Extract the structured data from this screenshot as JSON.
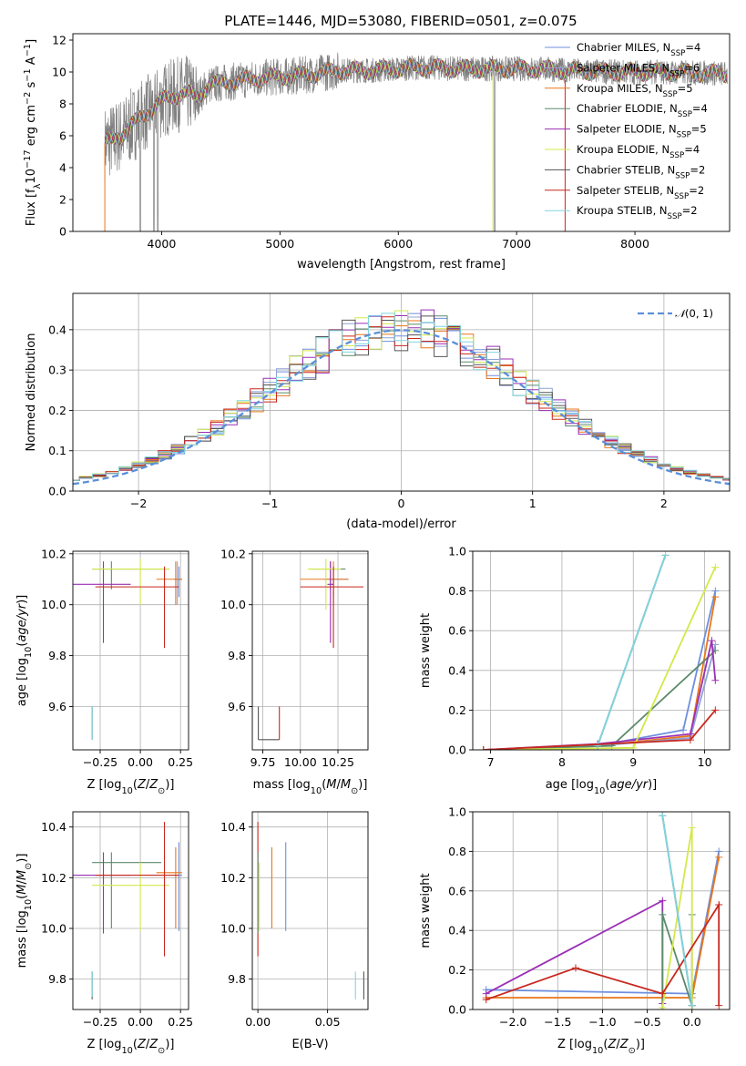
{
  "figure_title": "PLATE=1446, MJD=53080, FIBERID=0501, z=0.075",
  "models": [
    {
      "name": "Chabrier MILES",
      "nssp": 4,
      "label_prefix": "Chabrier MILES, N",
      "label_sub": "SSP",
      "label_suffix": "=4",
      "color": "#6e8fde"
    },
    {
      "name": "Salpeter MILES",
      "nssp": 6,
      "label_prefix": "Salpeter MILES, N",
      "label_sub": "SSP",
      "label_suffix": "=6",
      "color": "#8fa2d8"
    },
    {
      "name": "Kroupa MILES",
      "nssp": 5,
      "label_prefix": "Kroupa MILES, N",
      "label_sub": "SSP",
      "label_suffix": "=5",
      "color": "#e8761a"
    },
    {
      "name": "Chabrier ELODIE",
      "nssp": 4,
      "label_prefix": "Chabrier ELODIE, N",
      "label_sub": "SSP",
      "label_suffix": "=4",
      "color": "#5b8a6a"
    },
    {
      "name": "Salpeter ELODIE",
      "nssp": 5,
      "label_prefix": "Salpeter ELODIE, N",
      "label_sub": "SSP",
      "label_suffix": "=5",
      "color": "#9b2fb6"
    },
    {
      "name": "Kroupa ELODIE",
      "nssp": 4,
      "label_prefix": "Kroupa ELODIE, N",
      "label_sub": "SSP",
      "label_suffix": "=4",
      "color": "#d4e84a"
    },
    {
      "name": "Chabrier STELIB",
      "nssp": 2,
      "label_prefix": "Chabrier STELIB, N",
      "label_sub": "SSP",
      "label_suffix": "=2",
      "color": "#555555"
    },
    {
      "name": "Salpeter STELIB",
      "nssp": 2,
      "label_prefix": "Salpeter STELIB, N",
      "label_sub": "SSP",
      "label_suffix": "=2",
      "color": "#c8281e"
    },
    {
      "name": "Kroupa STELIB",
      "nssp": 2,
      "label_prefix": "Kroupa STELIB, N",
      "label_sub": "SSP",
      "label_suffix": "=2",
      "color": "#7fd6e0"
    }
  ],
  "chart_data": [
    {
      "id": "spectrum",
      "type": "line",
      "title": "PLATE=1446, MJD=53080, FIBERID=0501, z=0.075",
      "xlabel": "wavelength [Angstrom, rest frame]",
      "ylabel": "Flux [fλ10⁻¹⁷ erg cm⁻² s⁻¹ A⁻¹]",
      "xlim": [
        3250,
        8800
      ],
      "ylim": [
        0,
        12.4
      ],
      "xticks": [
        4000,
        5000,
        6000,
        7000,
        8000
      ],
      "yticks": [
        0,
        2,
        4,
        6,
        8,
        10,
        12
      ],
      "data_series": {
        "name": "data",
        "color": "#808080",
        "x_start": 3520,
        "x_end": 8780
      },
      "model_continuum": {
        "x": [
          3520,
          3600,
          3700,
          3800,
          3900,
          4000,
          4100,
          4200,
          4300,
          4400,
          4600,
          4800,
          5000,
          5200,
          5500,
          5800,
          6000,
          6200,
          6500,
          6800,
          7000,
          7200,
          7400,
          7800,
          8200,
          8780
        ],
        "y": [
          5.5,
          5.8,
          6.3,
          7.0,
          7.6,
          8.2,
          8.5,
          8.7,
          8.4,
          9.2,
          9.4,
          9.6,
          9.7,
          9.8,
          10.1,
          10.1,
          10.2,
          10.3,
          10.2,
          10.2,
          10.2,
          10.2,
          10.1,
          10.0,
          10.0,
          9.9
        ]
      }
    },
    {
      "id": "residuals",
      "type": "histogram",
      "xlabel": "(data-model)/error",
      "ylabel": "Normed distribution",
      "xlim": [
        -2.5,
        2.5
      ],
      "ylim": [
        0,
        0.49
      ],
      "xticks": [
        -2,
        -1,
        0,
        1,
        2
      ],
      "yticks": [
        0.0,
        0.1,
        0.2,
        0.3,
        0.4
      ],
      "reference_curve": {
        "name": "N(0,1)",
        "mean": 0,
        "sigma": 1,
        "color": "#5b8fd9"
      },
      "bin_width": 0.1
    },
    {
      "id": "age-vs-Z",
      "type": "errorbar",
      "xlabel": "Z [log10(Z/Z⊙)]",
      "ylabel": "age [log10(age/yr)]",
      "xlim": [
        -0.42,
        0.3
      ],
      "ylim": [
        9.43,
        10.21
      ],
      "xticks": [
        -0.25,
        0.0,
        0.25
      ],
      "yticks": [
        9.6,
        9.8,
        10.0,
        10.2
      ],
      "points": [
        {
          "x": 0.24,
          "y": 10.1,
          "xlo": 0.22,
          "xhi": 0.26,
          "ylo": 10.03,
          "yhi": 10.15,
          "model": "Chabrier MILES"
        },
        {
          "x": 0.23,
          "y": 10.1,
          "xlo": 0.21,
          "xhi": 0.25,
          "ylo": 10.0,
          "yhi": 10.17,
          "model": "Salpeter MILES"
        },
        {
          "x": 0.22,
          "y": 10.1,
          "xlo": 0.1,
          "xhi": 0.26,
          "ylo": 10.0,
          "yhi": 10.17,
          "model": "Kroupa MILES"
        },
        {
          "x": -0.18,
          "y": 10.14,
          "xlo": -0.3,
          "xhi": 0.18,
          "ylo": 10.06,
          "yhi": 10.17,
          "model": "Chabrier ELODIE"
        },
        {
          "x": -0.23,
          "y": 10.08,
          "xlo": -0.42,
          "xhi": -0.06,
          "ylo": 9.85,
          "yhi": 10.17,
          "model": "Salpeter ELODIE"
        },
        {
          "x": 0.0,
          "y": 10.14,
          "xlo": -0.3,
          "xhi": 0.18,
          "ylo": 10.0,
          "yhi": 10.18,
          "model": "Kroupa ELODIE"
        },
        {
          "x": -0.3,
          "y": 9.47,
          "xlo": -0.3,
          "xhi": -0.3,
          "ylo": 9.47,
          "yhi": 9.6,
          "model": "Chabrier STELIB"
        },
        {
          "x": -0.3,
          "y": 9.47,
          "xlo": -0.3,
          "xhi": -0.3,
          "ylo": 9.47,
          "yhi": 9.6,
          "model": "Kroupa STELIB"
        },
        {
          "x": 0.15,
          "y": 10.07,
          "xlo": -0.28,
          "xhi": 0.24,
          "ylo": 9.83,
          "yhi": 10.15,
          "model": "Salpeter STELIB"
        }
      ]
    },
    {
      "id": "age-vs-mass",
      "type": "errorbar",
      "xlabel": "mass [log10(M/M⊙)]",
      "ylabel": "",
      "xlim": [
        9.68,
        10.45
      ],
      "ylim": [
        9.43,
        10.21
      ],
      "xticks": [
        9.75,
        10.0,
        10.25
      ],
      "yticks": [
        9.6,
        9.8,
        10.0,
        10.2
      ],
      "points": [
        {
          "x": 10.22,
          "y": 10.1,
          "xlo": 10.16,
          "xhi": 10.32,
          "ylo": 10.03,
          "yhi": 10.15,
          "model": "Chabrier MILES"
        },
        {
          "x": 10.22,
          "y": 10.1,
          "xlo": 10.0,
          "xhi": 10.32,
          "ylo": 10.0,
          "yhi": 10.17,
          "model": "Kroupa MILES"
        },
        {
          "x": 10.2,
          "y": 10.14,
          "xlo": 10.07,
          "xhi": 10.3,
          "ylo": 10.06,
          "yhi": 10.17,
          "model": "Chabrier ELODIE"
        },
        {
          "x": 10.2,
          "y": 10.08,
          "xlo": 10.18,
          "xhi": 10.22,
          "ylo": 9.85,
          "yhi": 10.17,
          "model": "Salpeter ELODIE"
        },
        {
          "x": 10.17,
          "y": 10.14,
          "xlo": 10.05,
          "xhi": 10.27,
          "ylo": 9.98,
          "yhi": 10.18,
          "model": "Kroupa ELODIE"
        },
        {
          "x": 10.22,
          "y": 10.07,
          "xlo": 10.0,
          "xhi": 10.42,
          "ylo": 9.83,
          "yhi": 10.15,
          "model": "Salpeter STELIB"
        },
        {
          "x": 9.72,
          "y": 9.47,
          "xlo": 9.72,
          "xhi": 9.86,
          "ylo": 9.47,
          "yhi": 9.6,
          "model": "Chabrier STELIB"
        },
        {
          "x": 9.86,
          "y": 9.47,
          "xlo": 9.86,
          "xhi": 9.86,
          "ylo": 9.47,
          "yhi": 9.6,
          "model": "Salpeter STELIB"
        }
      ]
    },
    {
      "id": "massweight-vs-age",
      "type": "line",
      "xlabel": "age [log10(age/yr)]",
      "ylabel": "mass weight",
      "xlim": [
        6.75,
        10.35
      ],
      "ylim": [
        0,
        1.0
      ],
      "xticks": [
        7,
        8,
        9,
        10
      ],
      "yticks": [
        0.0,
        0.2,
        0.4,
        0.6,
        0.8,
        1.0
      ],
      "series": [
        {
          "model": "Chabrier MILES",
          "x": [
            6.9,
            8.5,
            9.7,
            10.15
          ],
          "y": [
            0.0,
            0.02,
            0.1,
            0.8
          ]
        },
        {
          "model": "Kroupa MILES",
          "x": [
            6.9,
            8.5,
            9.8,
            10.15
          ],
          "y": [
            0.0,
            0.02,
            0.07,
            0.77
          ]
        },
        {
          "model": "Salpeter MILES",
          "x": [
            6.9,
            8.5,
            9.8,
            10.15
          ],
          "y": [
            0.0,
            0.02,
            0.06,
            0.53
          ]
        },
        {
          "model": "Chabrier ELODIE",
          "x": [
            6.9,
            8.7,
            10.15
          ],
          "y": [
            0.0,
            0.02,
            0.5
          ]
        },
        {
          "model": "Salpeter ELODIE",
          "x": [
            6.9,
            8.5,
            9.8,
            10.1,
            10.15
          ],
          "y": [
            0.0,
            0.03,
            0.08,
            0.55,
            0.35
          ]
        },
        {
          "model": "Kroupa ELODIE",
          "x": [
            6.9,
            9.0,
            10.15
          ],
          "y": [
            0.0,
            0.01,
            0.92
          ]
        },
        {
          "model": "Chabrier STELIB",
          "x": [
            8.5,
            9.45
          ],
          "y": [
            0.02,
            0.98
          ]
        },
        {
          "model": "Kroupa STELIB",
          "x": [
            8.5,
            9.45
          ],
          "y": [
            0.02,
            0.98
          ]
        },
        {
          "model": "Salpeter STELIB",
          "x": [
            6.9,
            9.8,
            10.15
          ],
          "y": [
            0.0,
            0.05,
            0.2
          ]
        }
      ]
    },
    {
      "id": "mass-vs-Z",
      "type": "errorbar",
      "xlabel": "Z [log10(Z/Z⊙)]",
      "ylabel": "mass [log10(M/M⊙)]",
      "xlim": [
        -0.42,
        0.3
      ],
      "ylim": [
        9.68,
        10.46
      ],
      "xticks": [
        -0.25,
        0.0,
        0.25
      ],
      "yticks": [
        9.8,
        10.0,
        10.2,
        10.4
      ],
      "points": [
        {
          "x": 0.24,
          "y": 10.21,
          "xlo": 0.22,
          "xhi": 0.26,
          "ylo": 9.99,
          "yhi": 10.34,
          "model": "Chabrier MILES"
        },
        {
          "x": 0.22,
          "y": 10.22,
          "xlo": 0.1,
          "xhi": 0.26,
          "ylo": 10.0,
          "yhi": 10.32,
          "model": "Kroupa MILES"
        },
        {
          "x": -0.18,
          "y": 10.26,
          "xlo": -0.3,
          "xhi": 0.13,
          "ylo": 10.0,
          "yhi": 10.3,
          "model": "Chabrier ELODIE"
        },
        {
          "x": -0.23,
          "y": 10.21,
          "xlo": -0.42,
          "xhi": -0.06,
          "ylo": 9.98,
          "yhi": 10.3,
          "model": "Salpeter ELODIE"
        },
        {
          "x": 0.0,
          "y": 10.17,
          "xlo": -0.3,
          "xhi": 0.18,
          "ylo": 9.99,
          "yhi": 10.26,
          "model": "Kroupa ELODIE"
        },
        {
          "x": 0.15,
          "y": 10.21,
          "xlo": -0.28,
          "xhi": 0.24,
          "ylo": 9.89,
          "yhi": 10.42,
          "model": "Salpeter STELIB"
        },
        {
          "x": -0.3,
          "y": 9.72,
          "xlo": -0.3,
          "xhi": -0.3,
          "ylo": 9.72,
          "yhi": 9.83,
          "model": "Chabrier STELIB"
        },
        {
          "x": -0.3,
          "y": 9.73,
          "xlo": -0.3,
          "xhi": -0.3,
          "ylo": 9.73,
          "yhi": 9.83,
          "model": "Kroupa STELIB"
        }
      ]
    },
    {
      "id": "mass-vs-ebv",
      "type": "errorbar",
      "xlabel": "E(B-V)",
      "ylabel": "",
      "xlim": [
        -0.004,
        0.079
      ],
      "ylim": [
        9.68,
        10.46
      ],
      "xticks": [
        0.0,
        0.05
      ],
      "yticks": [
        9.8,
        10.0,
        10.2,
        10.4
      ],
      "points": [
        {
          "x": 0.0,
          "y": 10.2,
          "ylo": 9.89,
          "yhi": 10.42,
          "model": "Salpeter STELIB"
        },
        {
          "x": 0.0,
          "y": 10.2,
          "ylo": 9.98,
          "yhi": 10.3,
          "model": "Chabrier ELODIE"
        },
        {
          "x": 0.001,
          "y": 10.15,
          "ylo": 9.99,
          "yhi": 10.26,
          "model": "Kroupa ELODIE"
        },
        {
          "x": 0.01,
          "y": 10.2,
          "ylo": 10.0,
          "yhi": 10.32,
          "model": "Kroupa MILES"
        },
        {
          "x": 0.02,
          "y": 10.2,
          "ylo": 9.99,
          "yhi": 10.34,
          "model": "Chabrier MILES"
        },
        {
          "x": 0.07,
          "y": 9.77,
          "ylo": 9.72,
          "yhi": 9.83,
          "model": "Kroupa STELIB"
        },
        {
          "x": 0.076,
          "y": 9.77,
          "ylo": 9.72,
          "yhi": 9.83,
          "model": "Chabrier STELIB"
        }
      ]
    },
    {
      "id": "massweight-vs-Z",
      "type": "line",
      "xlabel": "Z [log10(Z/Z⊙)]",
      "ylabel": "mass weight",
      "xlim": [
        -2.45,
        0.42
      ],
      "ylim": [
        0,
        1.0
      ],
      "xticks": [
        -2.0,
        -1.5,
        -1.0,
        -0.5,
        0.0
      ],
      "yticks": [
        0.0,
        0.2,
        0.4,
        0.6,
        0.8,
        1.0
      ],
      "series": [
        {
          "model": "Chabrier MILES",
          "x": [
            -2.3,
            0.0,
            0.3
          ],
          "y": [
            0.1,
            0.08,
            0.8
          ]
        },
        {
          "model": "Kroupa MILES",
          "x": [
            -2.3,
            0.0,
            0.3
          ],
          "y": [
            0.06,
            0.06,
            0.77
          ]
        },
        {
          "model": "Salpeter ELODIE",
          "x": [
            -2.3,
            -0.33,
            -0.33
          ],
          "y": [
            0.08,
            0.55,
            0.03
          ]
        },
        {
          "model": "Chabrier ELODIE",
          "x": [
            -0.33,
            -0.33,
            0.0,
            0.0
          ],
          "y": [
            0.0,
            0.48,
            0.02,
            0.48
          ]
        },
        {
          "model": "Kroupa ELODIE",
          "x": [
            -0.33,
            0.0,
            0.0
          ],
          "y": [
            0.01,
            0.92,
            0.0
          ]
        },
        {
          "model": "Salpeter STELIB",
          "x": [
            -2.3,
            -1.3,
            -0.33,
            0.3,
            0.3
          ],
          "y": [
            0.05,
            0.21,
            0.08,
            0.53,
            0.02
          ]
        },
        {
          "model": "Chabrier STELIB",
          "x": [
            -0.33,
            0.0
          ],
          "y": [
            0.98,
            0.02
          ]
        },
        {
          "model": "Kroupa STELIB",
          "x": [
            -0.33,
            0.0
          ],
          "y": [
            0.98,
            0.02
          ]
        }
      ]
    }
  ],
  "axis_text": {
    "spec_xlabel": "wavelength [Angstrom, rest frame]",
    "hist_xlabel": "(data-model)/error",
    "hist_ylabel": "Normed distribution",
    "mw_ylabel": "mass weight",
    "e_bv": "E(B-V)",
    "normal_label": "N(0,1)"
  }
}
